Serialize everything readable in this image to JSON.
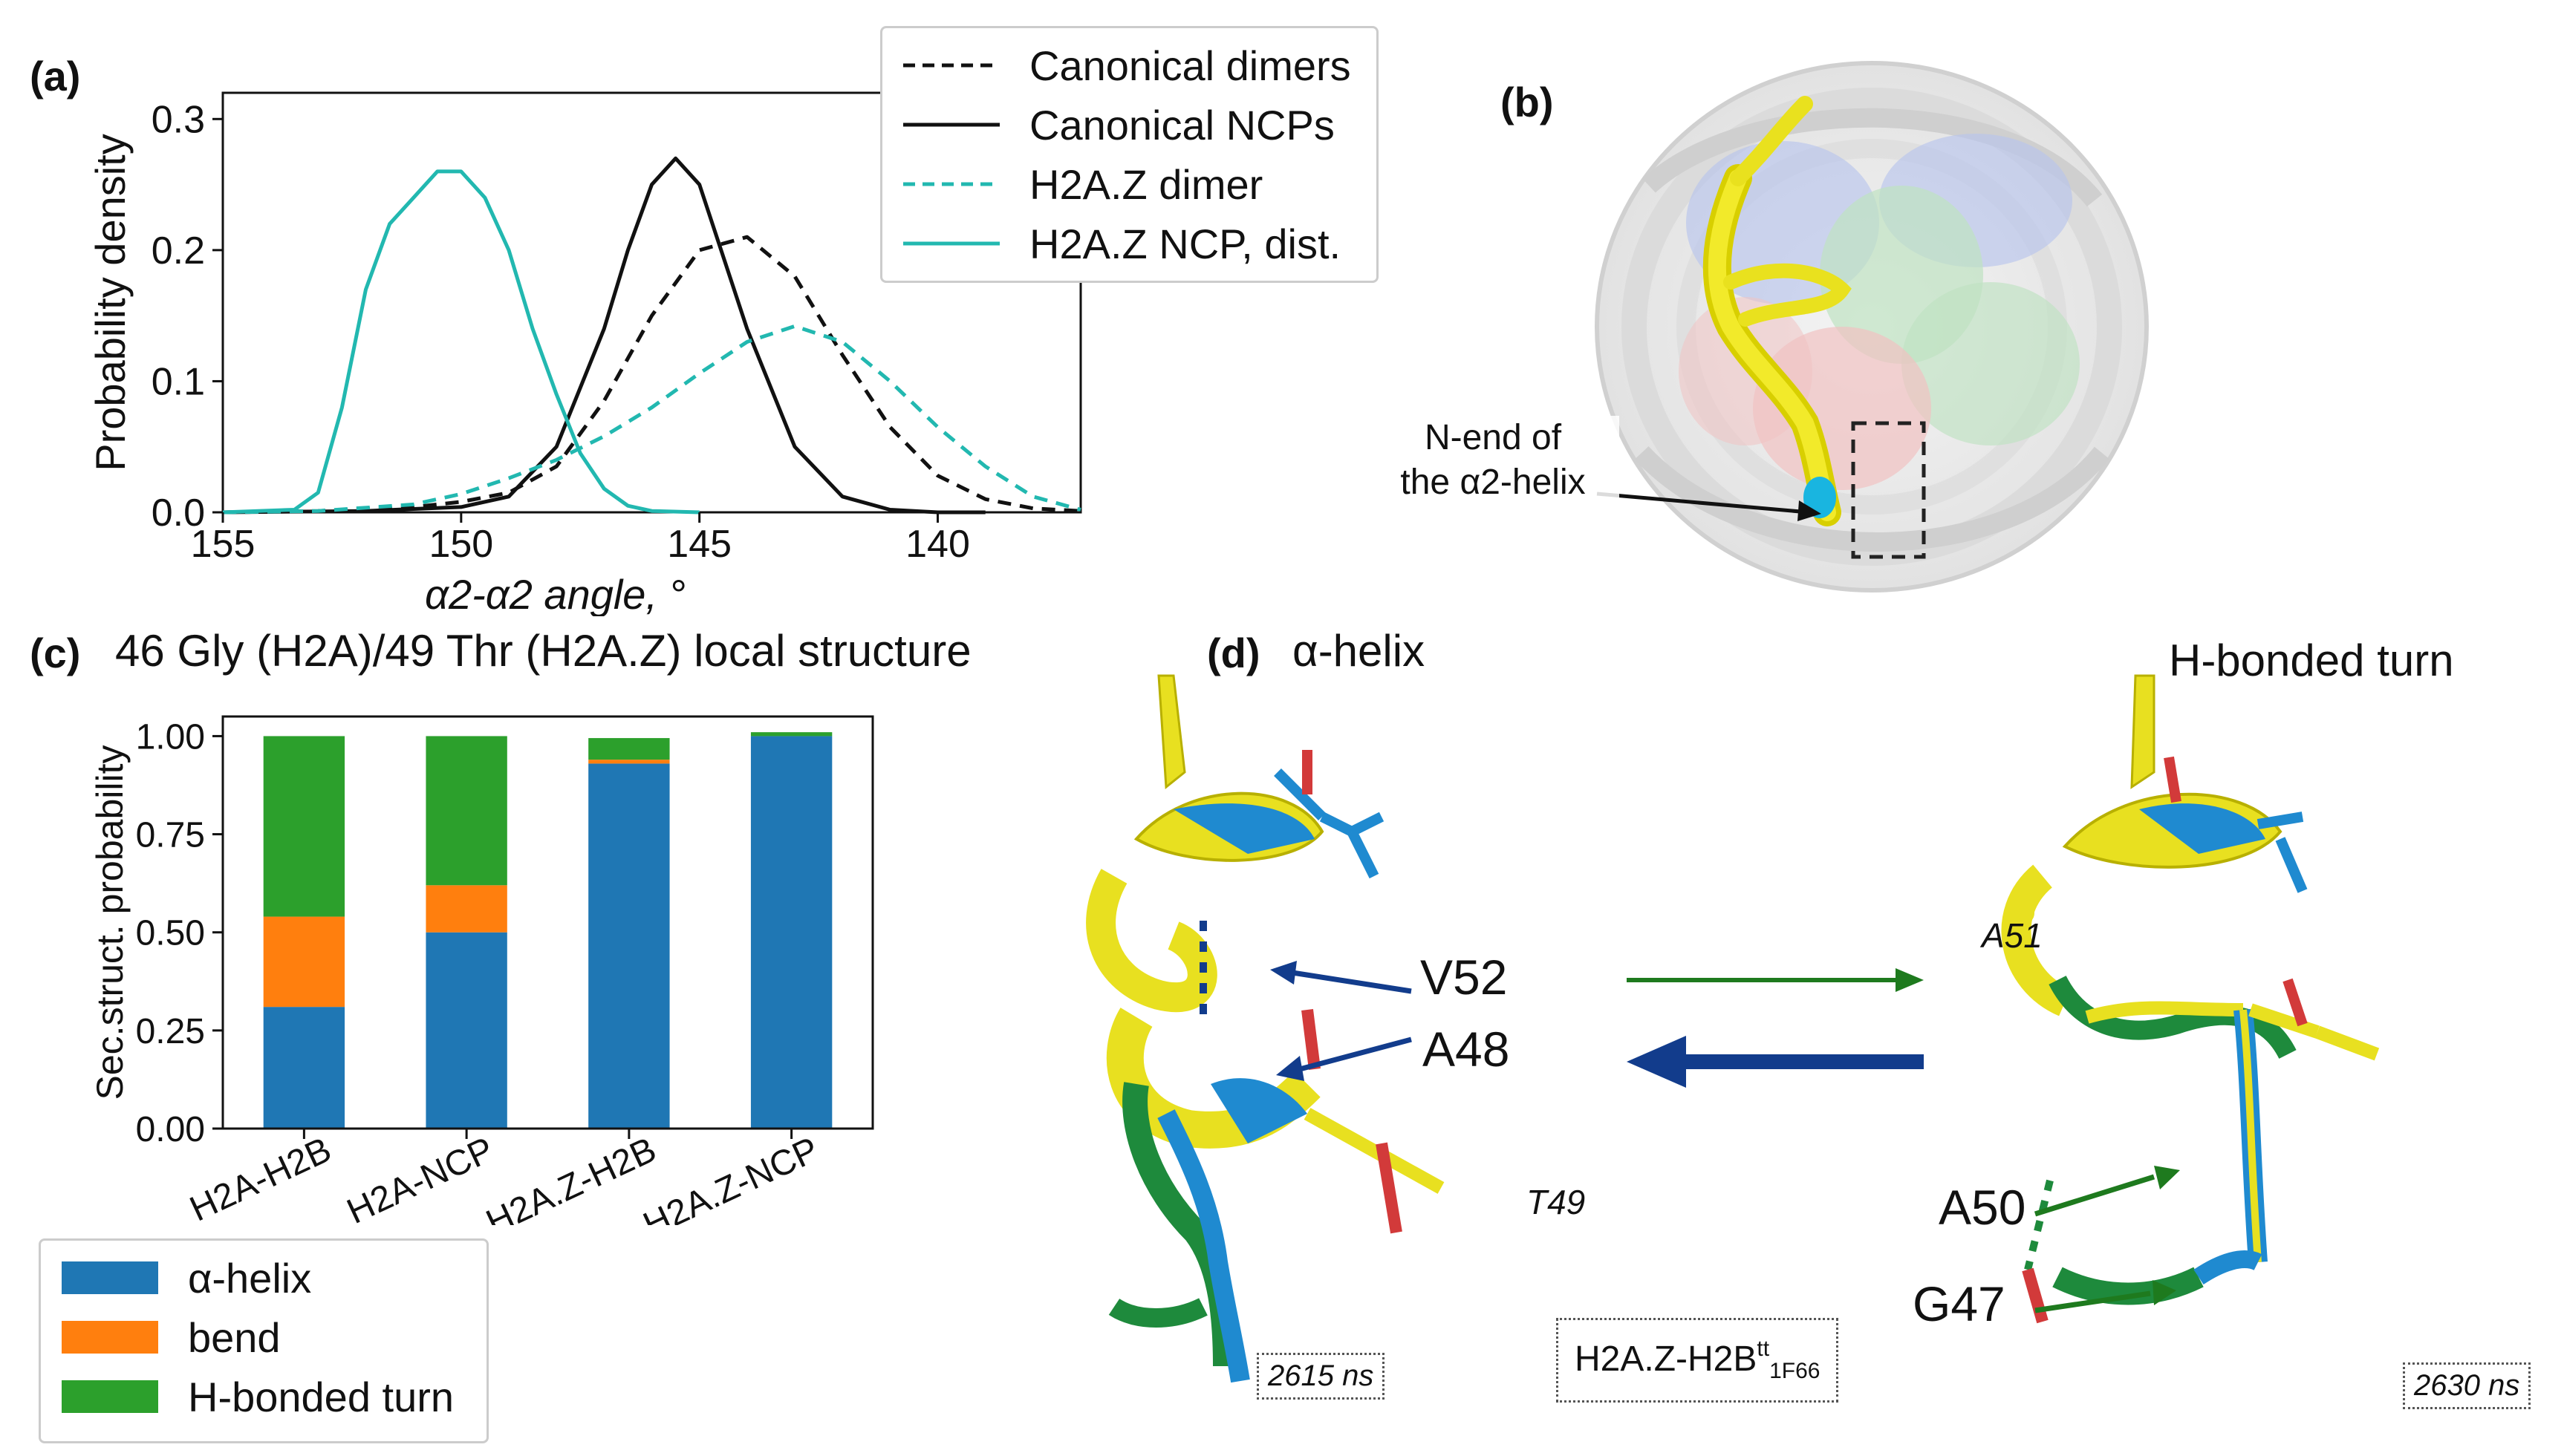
{
  "panel_a": {
    "label": "(a)",
    "ylabel": "Probability density",
    "xlabel": "α2-α2 angle, °",
    "legend": [
      {
        "name": "Canonical dimers",
        "color": "#111111",
        "dashed": true
      },
      {
        "name": "Canonical NCPs",
        "color": "#111111",
        "dashed": false
      },
      {
        "name": "H2A.Z dimer",
        "color": "#22b8b0",
        "dashed": true
      },
      {
        "name": "H2A.Z NCP, dist.",
        "color": "#22b8b0",
        "dashed": false
      }
    ]
  },
  "panel_b": {
    "label": "(b)",
    "annotation": [
      "N-end of",
      "the α2-helix"
    ]
  },
  "panel_c": {
    "label": "(c)",
    "title": "46 Gly (H2A)/49 Thr (H2A.Z) local structure",
    "ylabel": "Sec.struct. probability",
    "legend": [
      {
        "name": "α-helix",
        "color": "#1f77b4"
      },
      {
        "name": "bend",
        "color": "#ff7f0e"
      },
      {
        "name": "H-bonded turn",
        "color": "#2ca02c"
      }
    ]
  },
  "panel_d": {
    "label": "(d)",
    "left_title": "α-helix",
    "right_title": "H-bonded turn",
    "labels": {
      "v52": "V52",
      "a48": "A48",
      "a50": "A50",
      "g47": "G47",
      "t49": "T49",
      "a51": "A51"
    },
    "time_left": "2615 ns",
    "time_right": "2630 ns",
    "system": {
      "main": "H2A.Z-H2B",
      "sup": "tt",
      "sub": "1F66"
    },
    "colors": {
      "helix": "#e8e020",
      "blue": "#1f8ad0",
      "green": "#1e8a3c",
      "arrow_blue": "#123c8c",
      "arrow_green": "#1e7a1e"
    }
  },
  "chart_data": [
    {
      "type": "line",
      "panel": "a",
      "title": "",
      "xlabel": "α2-α2 angle, °",
      "ylabel": "Probability density",
      "xlim": [
        155,
        137
      ],
      "ylim": [
        0,
        0.32
      ],
      "xticks": [
        155,
        150,
        145,
        140
      ],
      "yticks": [
        0.0,
        0.1,
        0.2,
        0.3
      ],
      "series": [
        {
          "name": "Canonical dimers",
          "style": "dashed",
          "color": "#111111",
          "x": [
            155,
            153,
            151,
            150,
            149,
            148,
            147,
            146,
            145,
            144,
            143,
            142,
            141,
            140,
            139,
            138,
            137
          ],
          "y": [
            0.0,
            0.001,
            0.004,
            0.008,
            0.015,
            0.035,
            0.085,
            0.15,
            0.2,
            0.21,
            0.18,
            0.12,
            0.065,
            0.028,
            0.01,
            0.003,
            0.001
          ]
        },
        {
          "name": "Canonical NCPs",
          "style": "solid",
          "color": "#111111",
          "x": [
            155,
            152,
            150,
            149,
            148,
            147,
            146.5,
            146,
            145.5,
            145,
            144,
            143,
            142,
            141,
            140,
            139
          ],
          "y": [
            0.0,
            0.001,
            0.004,
            0.012,
            0.05,
            0.14,
            0.2,
            0.25,
            0.27,
            0.25,
            0.14,
            0.05,
            0.012,
            0.002,
            0.0,
            0.0
          ]
        },
        {
          "name": "H2A.Z dimer",
          "style": "dashed",
          "color": "#22b8b0",
          "x": [
            155,
            153,
            151,
            150,
            149,
            148,
            147,
            146,
            145,
            144,
            143,
            142,
            141,
            140,
            139,
            138,
            137
          ],
          "y": [
            0.0,
            0.001,
            0.006,
            0.014,
            0.026,
            0.04,
            0.058,
            0.08,
            0.106,
            0.13,
            0.142,
            0.13,
            0.1,
            0.065,
            0.035,
            0.012,
            0.002
          ]
        },
        {
          "name": "H2A.Z NCP, dist.",
          "style": "solid",
          "color": "#22b8b0",
          "x": [
            155,
            153.5,
            153,
            152.5,
            152,
            151.5,
            151,
            150.5,
            150,
            149.5,
            149,
            148.5,
            148,
            147.5,
            147,
            146.5,
            146,
            145
          ],
          "y": [
            0.0,
            0.002,
            0.015,
            0.08,
            0.17,
            0.22,
            0.24,
            0.26,
            0.26,
            0.24,
            0.2,
            0.14,
            0.09,
            0.045,
            0.018,
            0.005,
            0.001,
            0.0
          ]
        }
      ]
    },
    {
      "type": "bar",
      "stacked": true,
      "panel": "c",
      "title": "46 Gly (H2A)/49 Thr (H2A.Z) local structure",
      "ylabel": "Sec.struct. probability",
      "categories": [
        "H2A-H2B",
        "H2A-NCP",
        "H2A.Z-H2B",
        "H2A.Z-NCP"
      ],
      "ylim": [
        0,
        1.05
      ],
      "yticks": [
        0.0,
        0.25,
        0.5,
        0.75,
        1.0
      ],
      "series": [
        {
          "name": "α-helix",
          "color": "#1f77b4",
          "values": [
            0.31,
            0.5,
            0.93,
            1.0
          ]
        },
        {
          "name": "bend",
          "color": "#ff7f0e",
          "values": [
            0.23,
            0.12,
            0.01,
            0.0
          ]
        },
        {
          "name": "H-bonded turn",
          "color": "#2ca02c",
          "values": [
            0.46,
            0.38,
            0.055,
            0.01
          ]
        }
      ]
    }
  ]
}
